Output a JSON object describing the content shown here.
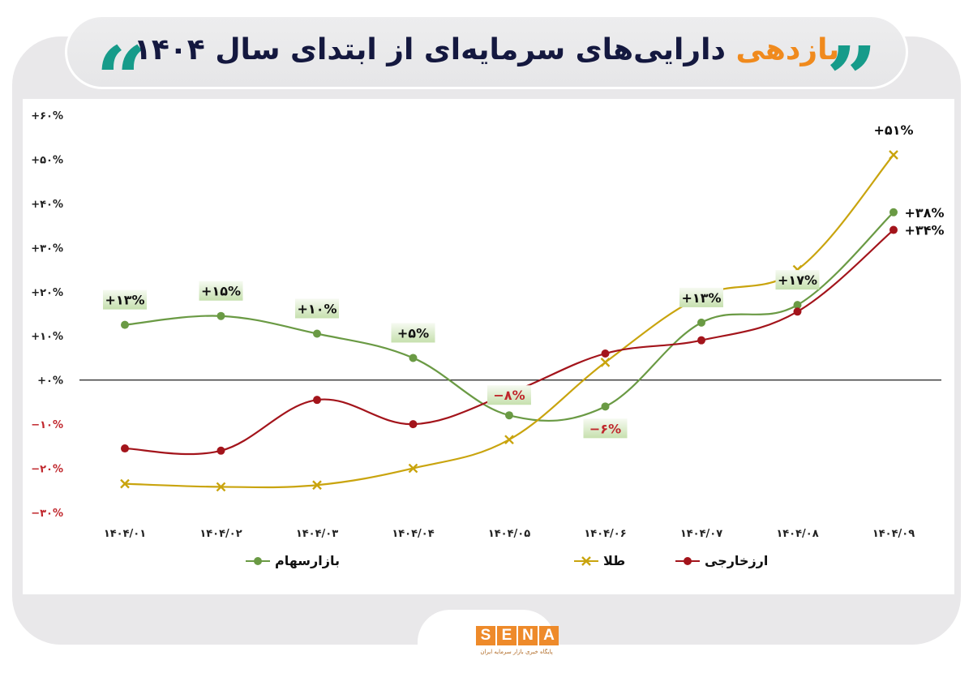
{
  "header": {
    "title_accent": "بازدهی",
    "title_rest": "دارایی‌های سرمایه‌ای از ابتدای سال ۱۴۰۴",
    "left_quote": "“",
    "right_quote": "”",
    "quote_color": "#169b8a",
    "accent_color": "#f08a1d",
    "title_color": "#14183f"
  },
  "branding": {
    "logo_letters": [
      "S",
      "E",
      "N",
      "A"
    ],
    "logo_subtitle": "پایگاه خبری بازار سرمایه ایران",
    "logo_color": "#ee8a2a"
  },
  "chart_data": {
    "type": "line",
    "title": "بازدهی دارایی‌های سرمایه‌ای از ابتدای سال ۱۴۰۴",
    "xlabel": "",
    "ylabel": "",
    "ylim": [
      -30,
      60
    ],
    "grid": false,
    "zero_line": true,
    "legend_position": "bottom",
    "categories": [
      "۱۴۰۴/۰۱",
      "۱۴۰۴/۰۲",
      "۱۴۰۴/۰۳",
      "۱۴۰۴/۰۴",
      "۱۴۰۴/۰۵",
      "۱۴۰۴/۰۶",
      "۱۴۰۴/۰۷",
      "۱۴۰۴/۰۸",
      "۱۴۰۴/۰۹"
    ],
    "y_ticks": [
      {
        "value": 60,
        "label": "+۶۰%"
      },
      {
        "value": 50,
        "label": "+۵۰%"
      },
      {
        "value": 40,
        "label": "+۴۰%"
      },
      {
        "value": 30,
        "label": "+۳۰%"
      },
      {
        "value": 20,
        "label": "+۲۰%"
      },
      {
        "value": 10,
        "label": "+۱۰%"
      },
      {
        "value": 0,
        "label": "+۰%"
      },
      {
        "value": -10,
        "label": "−۱۰%"
      },
      {
        "value": -20,
        "label": "−۲۰%"
      },
      {
        "value": -30,
        "label": "−۳۰%"
      }
    ],
    "series": [
      {
        "name": "بازار سهام",
        "color": "#6a9a44",
        "marker": "circle",
        "values": [
          12.5,
          14.5,
          10.5,
          5,
          -8,
          -6,
          13,
          17,
          38
        ]
      },
      {
        "name": "طلا",
        "color": "#c9a40e",
        "marker": "x",
        "values": [
          -23.5,
          -24.2,
          -23.8,
          -20,
          -13.5,
          4,
          19,
          25,
          51
        ]
      },
      {
        "name": "ارز خارجی",
        "color": "#a3141b",
        "marker": "circle",
        "values": [
          -15.5,
          -16,
          -4.5,
          -10,
          -3,
          6,
          9,
          15.5,
          34
        ]
      }
    ],
    "annotations": [
      {
        "series": "بازار سهام",
        "index": 0,
        "label": "+۱۳%",
        "boxed": true,
        "negative": false
      },
      {
        "series": "بازار سهام",
        "index": 1,
        "label": "+۱۵%",
        "boxed": true,
        "negative": false
      },
      {
        "series": "بازار سهام",
        "index": 2,
        "label": "+۱۰%",
        "boxed": true,
        "negative": false
      },
      {
        "series": "بازار سهام",
        "index": 3,
        "label": "+۵%",
        "boxed": true,
        "negative": false
      },
      {
        "series": "بازار سهام",
        "index": 4,
        "label": "−۸%",
        "boxed": true,
        "negative": true
      },
      {
        "series": "بازار سهام",
        "index": 5,
        "label": "−۶%",
        "boxed": true,
        "negative": true
      },
      {
        "series": "بازار سهام",
        "index": 6,
        "label": "+۱۳%",
        "boxed": true,
        "negative": false
      },
      {
        "series": "بازار سهام",
        "index": 7,
        "label": "+۱۷%",
        "boxed": true,
        "negative": false
      },
      {
        "series": "طلا",
        "index": 8,
        "label": "+۵۱%",
        "boxed": false,
        "negative": false
      },
      {
        "series": "بازار سهام",
        "index": 8,
        "label": "+۳۸%",
        "boxed": false,
        "negative": false
      },
      {
        "series": "ارز خارجی",
        "index": 8,
        "label": "+۳۴%",
        "boxed": false,
        "negative": false
      }
    ]
  },
  "legend": [
    {
      "label": "بازارسهام",
      "color": "#6a9a44",
      "marker": "circle"
    },
    {
      "label": "طلا",
      "color": "#c9a40e",
      "marker": "x"
    },
    {
      "label": "ارزخارجی",
      "color": "#a3141b",
      "marker": "circle"
    }
  ]
}
